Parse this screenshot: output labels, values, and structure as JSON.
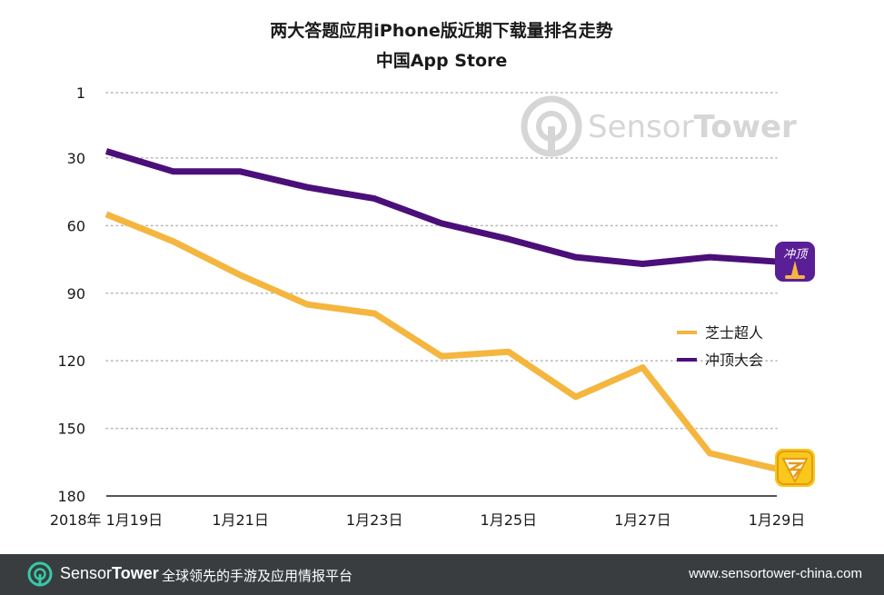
{
  "chart_data": {
    "type": "line",
    "title": "两大答题应用iPhone版近期下载量排名走势",
    "subtitle": "中国App Store",
    "x": [
      "2018年 1月19日",
      "1月20日",
      "1月21日",
      "1月22日",
      "1月23日",
      "1月24日",
      "1月25日",
      "1月26日",
      "1月27日",
      "1月28日",
      "1月29日"
    ],
    "x_tick_labels": [
      "2018年 1月19日",
      "",
      "1月21日",
      "",
      "1月23日",
      "",
      "1月25日",
      "",
      "1月27日",
      "",
      "1月29日"
    ],
    "ylabel": "",
    "xlabel": "",
    "y_inverted": true,
    "ylim": [
      1,
      180
    ],
    "y_ticks": [
      1,
      30,
      60,
      90,
      120,
      150,
      180
    ],
    "grid": "horizontal dotted",
    "legend_position": "right",
    "series": [
      {
        "name": "芝士超人",
        "color": "#F4B63F",
        "values": [
          55,
          67,
          82,
          95,
          99,
          118,
          116,
          136,
          123,
          161,
          168
        ]
      },
      {
        "name": "冲顶大会",
        "color": "#4B0F7A",
        "values": [
          27,
          36,
          36,
          43,
          48,
          59,
          66,
          74,
          77,
          74,
          76
        ]
      }
    ]
  },
  "watermark": {
    "brand_light": "Sensor",
    "brand_bold": "Tower"
  },
  "app_icons": {
    "chongding_text": "冲顶"
  },
  "footer": {
    "brand_light": "Sensor",
    "brand_bold": "Tower",
    "tagline": "全球领先的手游及应用情报平台",
    "url": "www.sensortower-china.com"
  }
}
